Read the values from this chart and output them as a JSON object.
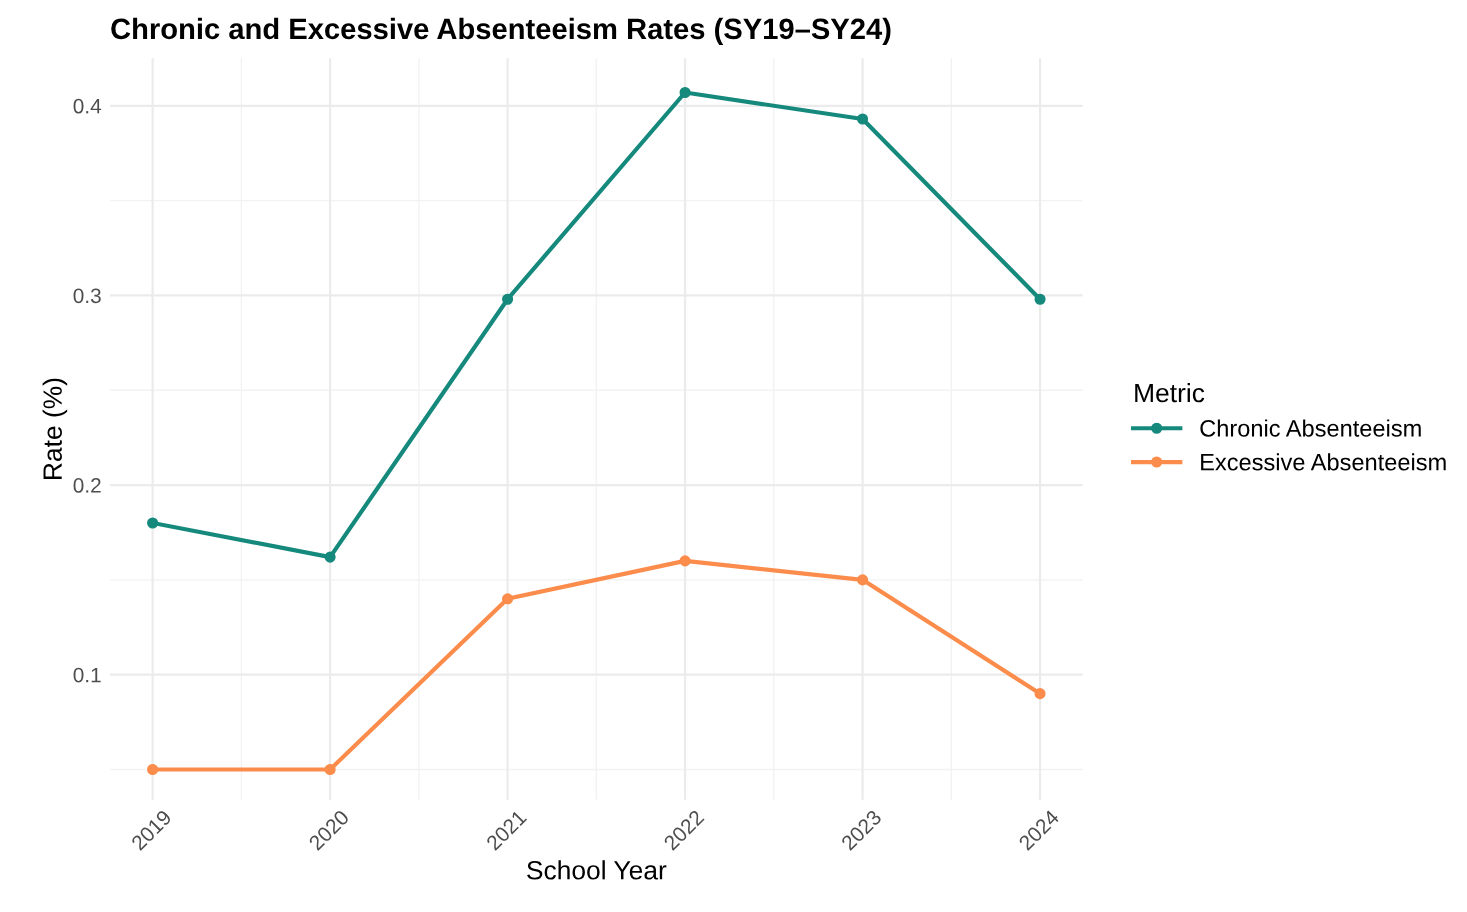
{
  "chart_data": {
    "type": "line",
    "title": "Chronic and Excessive Absenteeism Rates (SY19–SY24)",
    "xlabel": "School Year",
    "ylabel": "Rate (%)",
    "legend_title": "Metric",
    "x": [
      2019,
      2020,
      2021,
      2022,
      2023,
      2024
    ],
    "series": [
      {
        "name": "Chronic Absenteeism",
        "color": "#16897d",
        "values": [
          0.18,
          0.162,
          0.298,
          0.407,
          0.393,
          0.298
        ]
      },
      {
        "name": "Excessive Absenteeism",
        "color": "#fb8c4b",
        "values": [
          0.05,
          0.05,
          0.14,
          0.16,
          0.15,
          0.09
        ]
      }
    ],
    "xlim": [
      2018.76,
      2024.24
    ],
    "ylim": [
      0.034,
      0.425
    ],
    "xticks": [
      2019,
      2020,
      2021,
      2022,
      2023,
      2024
    ],
    "yticks": [
      0.1,
      0.2,
      0.3,
      0.4
    ],
    "grid": true,
    "legend": "right",
    "marker": "circle",
    "line_style": "solid"
  }
}
